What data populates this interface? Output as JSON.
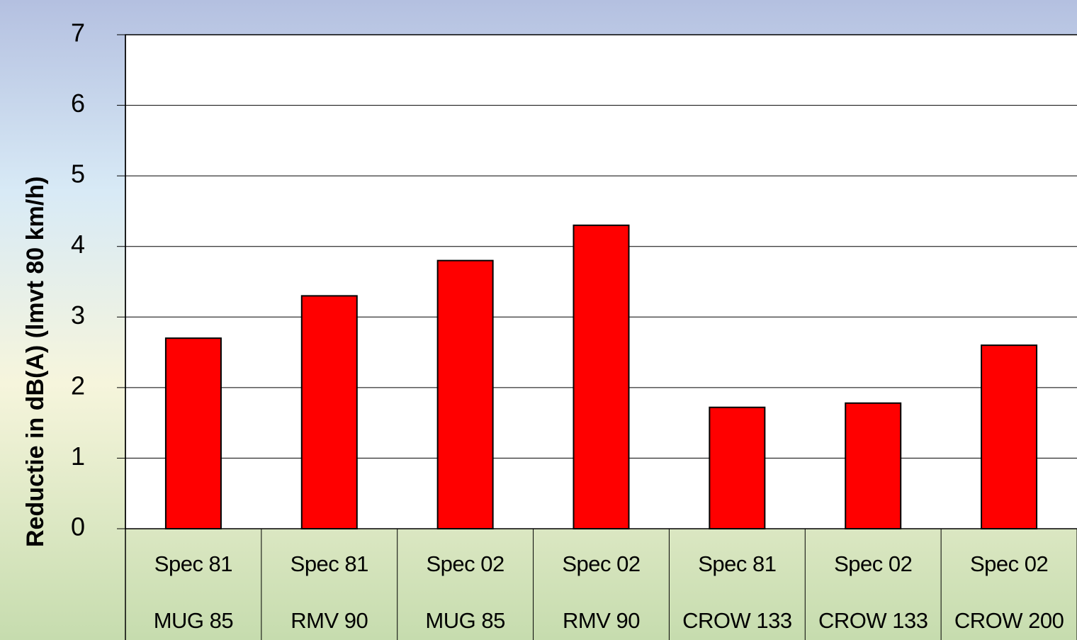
{
  "chart_data": {
    "type": "bar",
    "y_label": "Reductie in dB(A) (lmvt 80 km/h)",
    "categories": [
      [
        "Spec 81",
        "MUG 85"
      ],
      [
        "Spec 81",
        "RMV 90"
      ],
      [
        "Spec 02",
        "MUG 85"
      ],
      [
        "Spec 02",
        "RMV 90"
      ],
      [
        "Spec 81",
        "CROW 133"
      ],
      [
        "Spec 02",
        "CROW 133"
      ],
      [
        "Spec 02",
        "CROW 200"
      ]
    ],
    "values": [
      2.7,
      3.3,
      3.8,
      4.3,
      1.72,
      1.78,
      2.6
    ],
    "color": "#ff0000",
    "ylim": [
      0,
      7
    ],
    "yticks": [
      0,
      1,
      2,
      3,
      4,
      5,
      6,
      7
    ],
    "grid": true
  }
}
